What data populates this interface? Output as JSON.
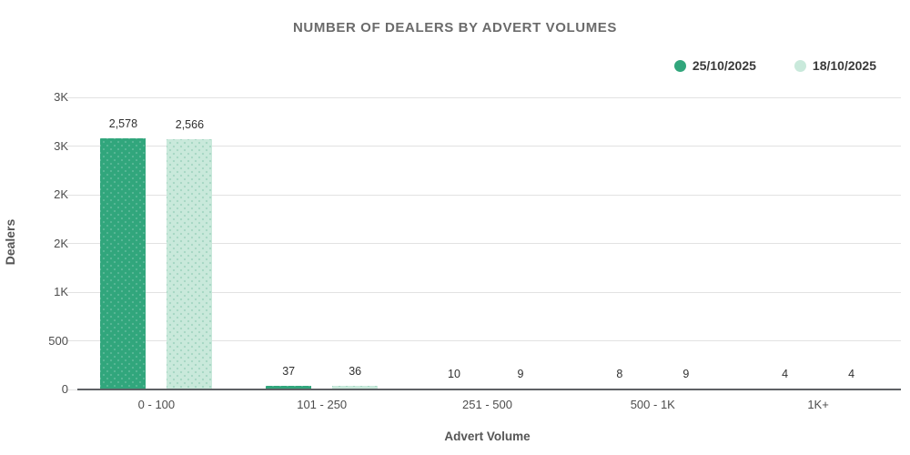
{
  "title": "NUMBER OF DEALERS BY ADVERT VOLUMES",
  "legend": {
    "items": [
      {
        "label": "25/10/2025",
        "color": "#31a67c",
        "pattern": "solid"
      },
      {
        "label": "18/10/2025",
        "color": "#c9e9db",
        "pattern": "dotted"
      }
    ]
  },
  "colors": {
    "series1": "#31a67c",
    "series2": "#c9e9db",
    "series2_dots": "#a8d8c5",
    "gridline": "#e2e2e2",
    "axis_line": "#5e6165",
    "title_text": "#6b6b6b",
    "tick_text": "#4d4d4d"
  },
  "chart_data": {
    "type": "bar",
    "title": "NUMBER OF DEALERS BY ADVERT VOLUMES",
    "categories": [
      "0 - 100",
      "101 - 250",
      "251 - 500",
      "500 - 1K",
      "1K+"
    ],
    "series": [
      {
        "name": "25/10/2025",
        "color": "#31a67c",
        "values": [
          2578,
          37,
          10,
          8,
          4
        ]
      },
      {
        "name": "18/10/2025",
        "color": "#c9e9db",
        "values": [
          2566,
          36,
          9,
          9,
          4
        ]
      }
    ],
    "data_labels": [
      [
        "2,578",
        "37",
        "10",
        "8",
        "4"
      ],
      [
        "2,566",
        "36",
        "9",
        "9",
        "4"
      ]
    ],
    "xlabel": "Advert Volume",
    "ylabel": "Dealers",
    "ylim": [
      0,
      3000
    ],
    "ytick_values": [
      0,
      500,
      1000,
      1500,
      2000,
      2500,
      3000
    ],
    "ytick_labels": [
      "0",
      "500",
      "1K",
      "2K",
      "2K",
      "3K",
      "3K"
    ],
    "grid": "horizontal-only",
    "legend_position": "top-right"
  }
}
